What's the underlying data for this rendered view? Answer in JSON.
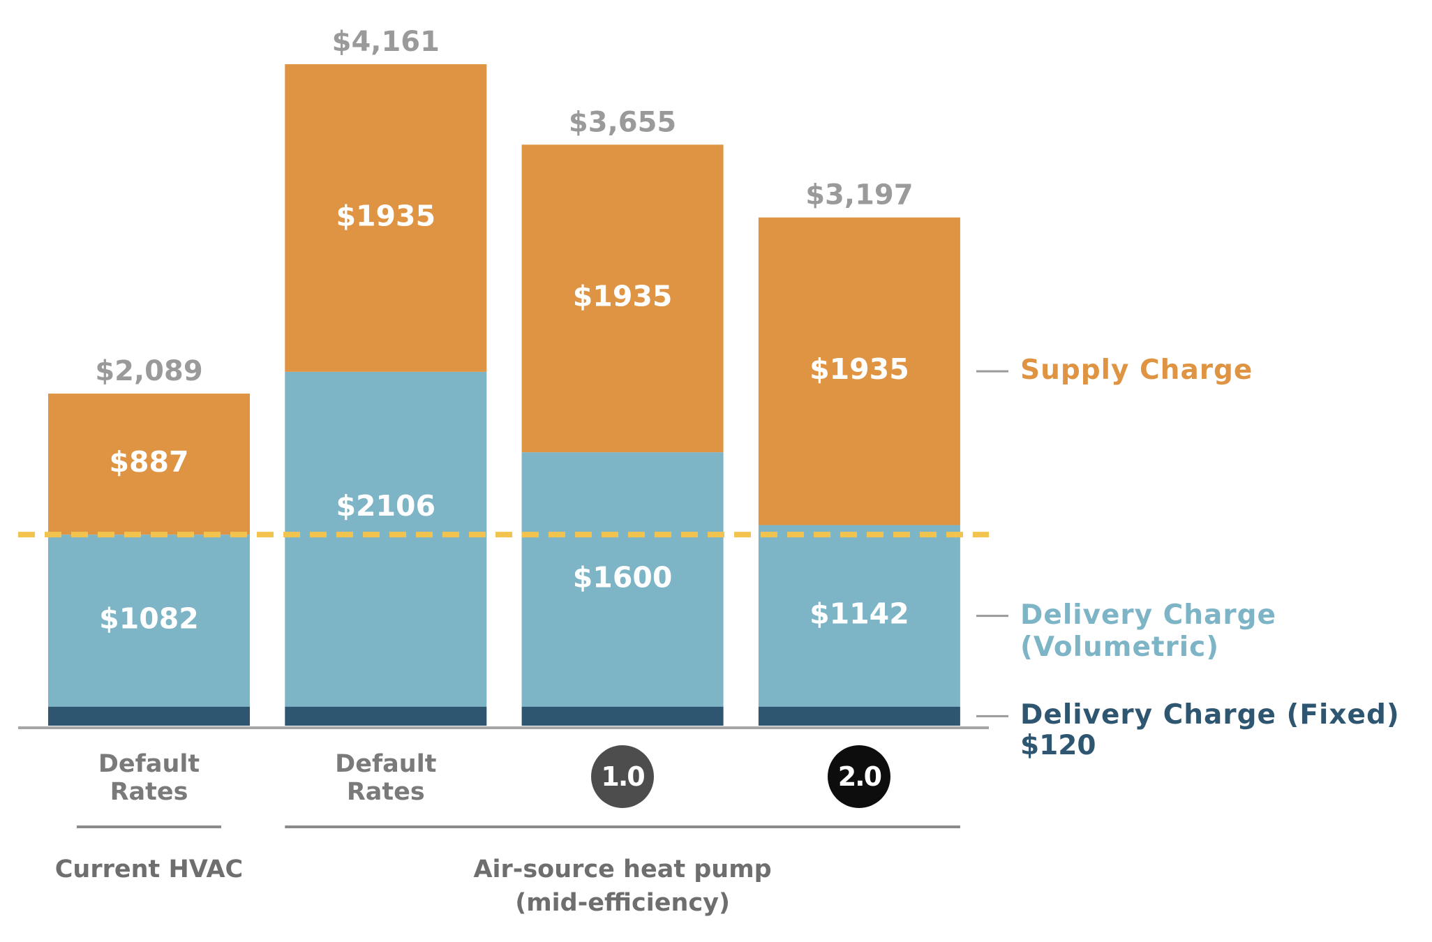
{
  "chart_data": {
    "type": "stacked_bar",
    "categories": [
      "Default Rates",
      "Default Rates",
      "1.0",
      "2.0"
    ],
    "category_badges": [
      null,
      null,
      "#4d4d4d",
      "#0d0d0d"
    ],
    "groups": [
      {
        "label": "Current HVAC",
        "span": [
          0,
          0
        ]
      },
      {
        "label": "Air-source heat pump (mid-efficiency)",
        "span": [
          1,
          3
        ]
      }
    ],
    "series": [
      {
        "name": "Delivery Charge (Fixed)",
        "color": "#2f5670",
        "values": [
          120,
          120,
          120,
          120
        ],
        "legend_value": "$120"
      },
      {
        "name": "Delivery Charge (Volumetric)",
        "color": "#7db4c6",
        "values": [
          1082,
          2106,
          1600,
          1142
        ],
        "value_labels": [
          "$1082",
          "$2106",
          "$1600",
          "$1142"
        ]
      },
      {
        "name": "Supply Charge",
        "color": "#df9443",
        "values": [
          887,
          1935,
          1935,
          1935
        ],
        "value_labels": [
          "$887",
          "$1935",
          "$1935",
          "$1935"
        ]
      }
    ],
    "totals": [
      2089,
      4161,
      3655,
      3197
    ],
    "total_labels": [
      "$2,089",
      "$4,161",
      "$3,655",
      "$3,197"
    ],
    "reference_line": {
      "value": 1202,
      "color": "#f2c44f",
      "dashed": true
    },
    "ylim": [
      0,
      4565
    ],
    "grid": false
  }
}
